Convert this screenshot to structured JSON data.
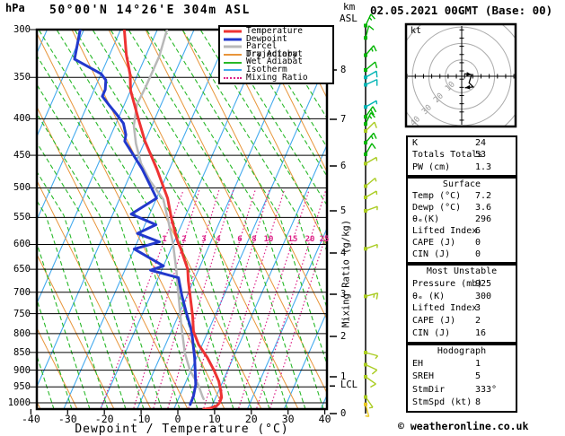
{
  "header": {
    "pressure_unit": "hPa",
    "station_title": "50°00'N 14°26'E 304m ASL",
    "datetime_title": "02.05.2021 00GMT (Base: 00)",
    "alt_unit_top": "km",
    "alt_unit_bottom": "ASL"
  },
  "legend": {
    "items": [
      {
        "label": "Temperature",
        "color": "#ee3333",
        "thick": true,
        "dotted": false
      },
      {
        "label": "Dewpoint",
        "color": "#2238cc",
        "thick": true,
        "dotted": false
      },
      {
        "label": "Parcel Trajectory",
        "color": "#b8b8b8",
        "thick": true,
        "dotted": false
      },
      {
        "label": "Dry Adiabat",
        "color": "#e8953a",
        "thick": false,
        "dotted": false
      },
      {
        "label": "Wet Adiabat",
        "color": "#28b828",
        "thick": false,
        "dotted": false
      },
      {
        "label": "Isotherm",
        "color": "#44aaee",
        "thick": false,
        "dotted": false
      },
      {
        "label": "Mixing Ratio",
        "color": "#dd2288",
        "thick": false,
        "dotted": true
      }
    ]
  },
  "axes": {
    "pressure_ticks": [
      300,
      350,
      400,
      450,
      500,
      550,
      600,
      650,
      700,
      750,
      800,
      850,
      900,
      950,
      1000
    ],
    "temp_ticks": [
      -40,
      -30,
      -20,
      -10,
      0,
      10,
      20,
      30,
      40
    ],
    "temp_axis_label": "Dewpoint / Temperature (°C)",
    "km_ticks": [
      0,
      1,
      2,
      3,
      4,
      5,
      6,
      7,
      8
    ],
    "mixing_axis_label": "Mixing Ratio (g/kg)",
    "mixing_ratio_values": [
      1,
      2,
      3,
      4,
      6,
      8,
      10,
      15,
      20,
      25
    ],
    "lcl_label": "LCL",
    "lcl_km": 0.75
  },
  "chart_data": {
    "type": "skew-t-log-p",
    "pressure_unit": "hPa",
    "temp_unit": "°C",
    "temperature_profile": [
      [
        300,
        -59
      ],
      [
        325,
        -55.5
      ],
      [
        347,
        -52
      ],
      [
        365,
        -50
      ],
      [
        400,
        -44.5
      ],
      [
        430,
        -40
      ],
      [
        470,
        -33.5
      ],
      [
        517,
        -27
      ],
      [
        552,
        -23.5
      ],
      [
        595,
        -19
      ],
      [
        607,
        -17.5
      ],
      [
        650,
        -13
      ],
      [
        674,
        -11.5
      ],
      [
        757,
        -6
      ],
      [
        794,
        -4
      ],
      [
        829,
        -1
      ],
      [
        865,
        3
      ],
      [
        902,
        6.4
      ],
      [
        933,
        8.9
      ],
      [
        961,
        10.5
      ],
      [
        983,
        11.6
      ],
      [
        1000,
        11.7
      ],
      [
        1009,
        11.3
      ],
      [
        1018,
        9.7
      ],
      [
        1021,
        8.1
      ]
    ],
    "dewpoint_profile": [
      [
        300,
        -71
      ],
      [
        330,
        -69
      ],
      [
        346,
        -60
      ],
      [
        353,
        -58
      ],
      [
        364,
        -57
      ],
      [
        372,
        -57
      ],
      [
        383,
        -54
      ],
      [
        394,
        -51
      ],
      [
        406,
        -48
      ],
      [
        421,
        -46
      ],
      [
        430,
        -45.5
      ],
      [
        470,
        -37.5
      ],
      [
        517,
        -30
      ],
      [
        544,
        -35
      ],
      [
        563,
        -27
      ],
      [
        579,
        -31
      ],
      [
        595,
        -24
      ],
      [
        609,
        -30
      ],
      [
        643,
        -20
      ],
      [
        652,
        -23
      ],
      [
        668,
        -14.5
      ],
      [
        707,
        -11.5
      ],
      [
        750,
        -8
      ],
      [
        794,
        -4.5
      ],
      [
        865,
        -0.5
      ],
      [
        943,
        3
      ],
      [
        980,
        3.8
      ],
      [
        1006,
        3.9
      ]
    ],
    "parcel_profile": [
      [
        300,
        -47.4
      ],
      [
        327,
        -46.3
      ],
      [
        360,
        -46.3
      ],
      [
        382,
        -46.6
      ],
      [
        409,
        -44.9
      ],
      [
        433,
        -42.2
      ],
      [
        462,
        -38.4
      ],
      [
        489,
        -33.8
      ],
      [
        519,
        -28
      ],
      [
        555,
        -24.2
      ],
      [
        598,
        -20.1
      ],
      [
        653,
        -15.9
      ],
      [
        713,
        -12
      ],
      [
        779,
        -8
      ],
      [
        851,
        -3.8
      ],
      [
        902,
        -0.2
      ],
      [
        942,
        3.6
      ],
      [
        979,
        6.2
      ],
      [
        988,
        6.9
      ]
    ],
    "wind_barbs": [
      {
        "km": 8.9,
        "dir": 335,
        "kt": 15,
        "c": "green"
      },
      {
        "km": 8.65,
        "dir": 345,
        "kt": 10,
        "c": "green"
      },
      {
        "km": 8.3,
        "dir": 320,
        "kt": 15,
        "c": "green"
      },
      {
        "km": 8.0,
        "dir": 310,
        "kt": 10,
        "c": "green"
      },
      {
        "km": 7.85,
        "dir": 300,
        "kt": 10,
        "c": "cyan"
      },
      {
        "km": 7.7,
        "dir": 295,
        "kt": 10,
        "c": "cyan"
      },
      {
        "km": 7.25,
        "dir": 300,
        "kt": 5,
        "c": "cyan"
      },
      {
        "km": 7.05,
        "dir": 325,
        "kt": 20,
        "c": "green"
      },
      {
        "km": 6.9,
        "dir": 335,
        "kt": 15,
        "c": "green"
      },
      {
        "km": 6.75,
        "dir": 315,
        "kt": 10,
        "c": "lime"
      },
      {
        "km": 6.5,
        "dir": 320,
        "kt": 15,
        "c": "green"
      },
      {
        "km": 6.25,
        "dir": 330,
        "kt": 10,
        "c": "green"
      },
      {
        "km": 6.05,
        "dir": 300,
        "kt": 5,
        "c": "lime"
      },
      {
        "km": 5.55,
        "dir": 310,
        "kt": 5,
        "c": "lime"
      },
      {
        "km": 5.3,
        "dir": 300,
        "kt": 5,
        "c": "lime"
      },
      {
        "km": 5.0,
        "dir": 290,
        "kt": 5,
        "c": "lime"
      },
      {
        "km": 4.1,
        "dir": 290,
        "kt": 5,
        "c": "lime"
      },
      {
        "km": 2.95,
        "dir": 285,
        "kt": 15,
        "c": "lime"
      },
      {
        "km": 1.6,
        "dir": 255,
        "kt": 5,
        "c": "lime"
      },
      {
        "km": 1.3,
        "dir": 245,
        "kt": 10,
        "c": "lime"
      },
      {
        "km": 1.0,
        "dir": 235,
        "kt": 10,
        "c": "lime"
      },
      {
        "km": 0.45,
        "dir": 215,
        "kt": 5,
        "c": "lime"
      },
      {
        "km": 0.25,
        "dir": 195,
        "kt": 5,
        "c": "yellow"
      }
    ],
    "hodograph": {
      "unit_label": "kt",
      "rings_kt": [
        10,
        20,
        30,
        40
      ],
      "trace_kt": [
        [
          1.5,
          -1.5
        ],
        [
          6,
          -1
        ],
        [
          4.5,
          4
        ],
        [
          7,
          6.5
        ],
        [
          2,
          7
        ]
      ]
    }
  },
  "panels": {
    "boxes": [
      {
        "title": "",
        "rows": [
          [
            "K",
            "24"
          ],
          [
            "Totals Totals",
            "53"
          ],
          [
            "PW (cm)",
            "1.3"
          ]
        ]
      },
      {
        "title": "Surface",
        "rows": [
          [
            "Temp (°C)",
            "7.2"
          ],
          [
            "Dewp (°C)",
            "3.6"
          ],
          [
            "θₑ(K)",
            "296"
          ],
          [
            "Lifted Index",
            "6"
          ],
          [
            "CAPE (J)",
            "0"
          ],
          [
            "CIN (J)",
            "0"
          ]
        ]
      },
      {
        "title": "Most Unstable",
        "rows": [
          [
            "Pressure (mb)",
            "925"
          ],
          [
            "θₑ (K)",
            "300"
          ],
          [
            "Lifted Index",
            "3"
          ],
          [
            "CAPE (J)",
            "2"
          ],
          [
            "CIN (J)",
            "16"
          ]
        ]
      },
      {
        "title": "Hodograph",
        "rows": [
          [
            "EH",
            "1"
          ],
          [
            "SREH",
            "5"
          ],
          [
            "StmDir",
            "333°"
          ],
          [
            "StmSpd (kt)",
            "8"
          ]
        ]
      }
    ]
  },
  "colors": {
    "temperature": "#ee3333",
    "dewpoint": "#2238cc",
    "parcel": "#b8b8b8",
    "dry_adiabat": "#e8953a",
    "wet_adiabat": "#28b828",
    "isotherm": "#44aaee",
    "mixing_ratio": "#dd2288",
    "grid": "#000000",
    "hodo_ring": "#aaaaaa",
    "barb_green": "#00b400",
    "barb_cyan": "#00b4b4",
    "barb_lime": "#aacc22",
    "barb_yellow": "#e8c820"
  },
  "footer": {
    "credit": "© weatheronline.co.uk"
  }
}
